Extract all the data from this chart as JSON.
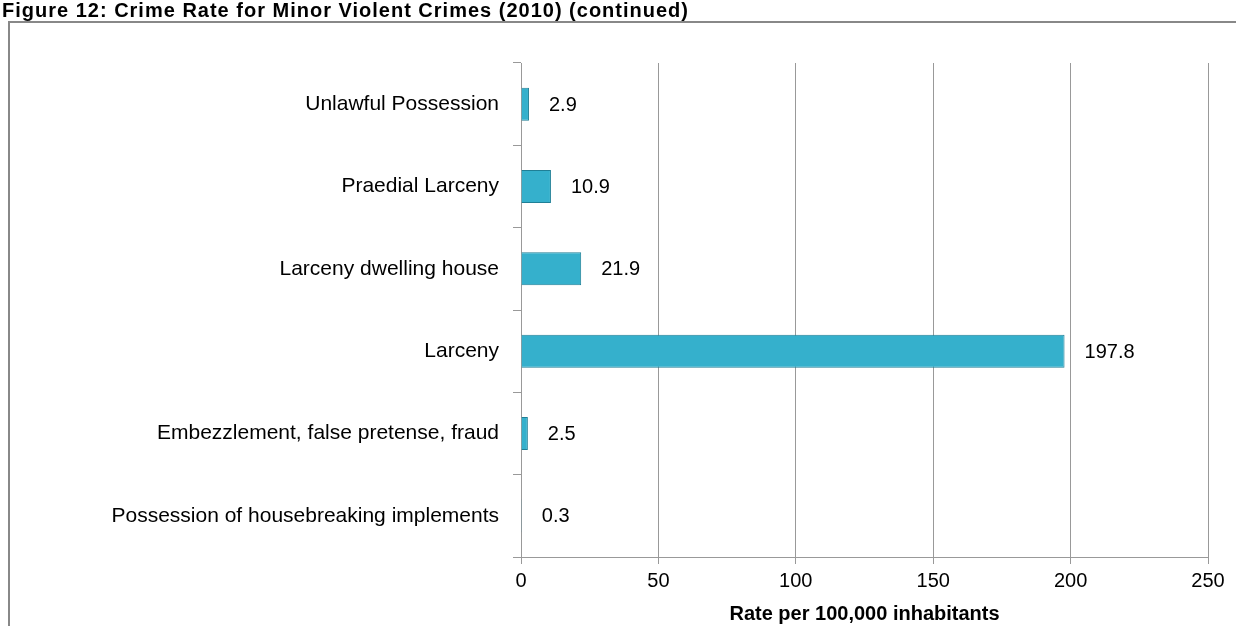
{
  "chart_data": {
    "type": "bar",
    "orientation": "horizontal",
    "title": "Figure 12: Crime Rate for Minor Violent Crimes (2010) (continued)",
    "xlabel": "Rate per 100,000 inhabitants",
    "categories": [
      "Unlawful Possession",
      "Praedial Larceny",
      "Larceny dwelling house",
      "Larceny",
      "Embezzlement, false pretense, fraud",
      "Possession of housebreaking implements"
    ],
    "values": [
      2.9,
      10.9,
      21.9,
      197.8,
      2.5,
      0.3
    ],
    "color": "#35b0cc",
    "xlim": [
      0,
      250
    ],
    "xticks": [
      0,
      50,
      100,
      150,
      200,
      250
    ],
    "grid": "x",
    "data_labels": true
  }
}
